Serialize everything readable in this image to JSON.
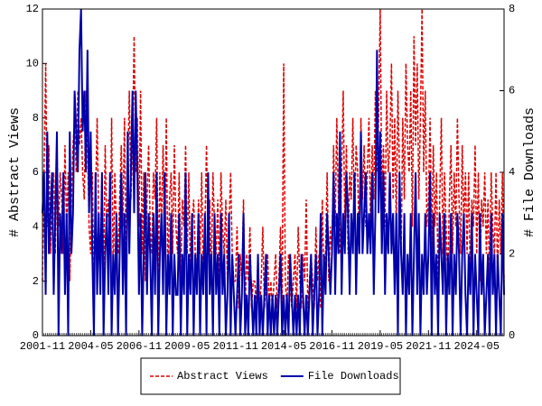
{
  "chart_data": {
    "type": "line",
    "x": [
      "2001-11",
      "2001-12",
      "2002-01",
      "2002-02",
      "2002-03",
      "2002-04",
      "2002-05",
      "2002-06",
      "2002-07",
      "2002-08",
      "2002-09",
      "2002-10",
      "2002-11",
      "2002-12",
      "2003-01",
      "2003-02",
      "2003-03",
      "2003-04",
      "2003-05",
      "2003-06",
      "2003-07",
      "2003-08",
      "2003-09",
      "2003-10",
      "2003-11",
      "2003-12",
      "2004-01",
      "2004-02",
      "2004-03",
      "2004-04",
      "2004-05",
      "2004-06",
      "2004-07",
      "2004-08",
      "2004-09",
      "2004-10",
      "2004-11",
      "2004-12",
      "2005-01",
      "2005-02",
      "2005-03",
      "2005-04",
      "2005-05",
      "2005-06",
      "2005-07",
      "2005-08",
      "2005-09",
      "2005-10",
      "2005-11",
      "2005-12",
      "2006-01",
      "2006-02",
      "2006-03",
      "2006-04",
      "2006-05",
      "2006-06",
      "2006-07",
      "2006-08",
      "2006-09",
      "2006-10",
      "2006-11",
      "2006-12",
      "2007-01",
      "2007-02",
      "2007-03",
      "2007-04",
      "2007-05",
      "2007-06",
      "2007-07",
      "2007-08",
      "2007-09",
      "2007-10",
      "2007-11",
      "2007-12",
      "2008-01",
      "2008-02",
      "2008-03",
      "2008-04",
      "2008-05",
      "2008-06",
      "2008-07",
      "2008-08",
      "2008-09",
      "2008-10",
      "2008-11",
      "2008-12",
      "2009-01",
      "2009-02",
      "2009-03",
      "2009-04",
      "2009-05",
      "2009-06",
      "2009-07",
      "2009-08",
      "2009-09",
      "2009-10",
      "2009-11",
      "2009-12",
      "2010-01",
      "2010-02",
      "2010-03",
      "2010-04",
      "2010-05",
      "2010-06",
      "2010-07",
      "2010-08",
      "2010-09",
      "2010-10",
      "2010-11",
      "2010-12",
      "2011-01",
      "2011-02",
      "2011-03",
      "2011-04",
      "2011-05",
      "2011-06",
      "2011-07",
      "2011-08",
      "2011-09",
      "2011-10",
      "2011-11",
      "2011-12",
      "2012-01",
      "2012-02",
      "2012-03",
      "2012-04",
      "2012-05",
      "2012-06",
      "2012-07",
      "2012-08",
      "2012-09",
      "2012-10",
      "2012-11",
      "2012-12",
      "2013-01",
      "2013-02",
      "2013-03",
      "2013-04",
      "2013-05",
      "2013-06",
      "2013-07",
      "2013-08",
      "2013-09",
      "2013-10",
      "2013-11",
      "2013-12",
      "2014-01",
      "2014-02",
      "2014-03",
      "2014-04",
      "2014-05",
      "2014-06",
      "2014-07",
      "2014-08",
      "2014-09",
      "2014-10",
      "2014-11",
      "2014-12",
      "2015-01",
      "2015-02",
      "2015-03",
      "2015-04",
      "2015-05",
      "2015-06",
      "2015-07",
      "2015-08",
      "2015-09",
      "2015-10",
      "2015-11",
      "2015-12",
      "2016-01",
      "2016-02",
      "2016-03",
      "2016-04",
      "2016-05",
      "2016-06",
      "2016-07",
      "2016-08",
      "2016-09",
      "2016-10",
      "2016-11",
      "2016-12",
      "2017-01",
      "2017-02",
      "2017-03",
      "2017-04",
      "2017-05",
      "2017-06",
      "2017-07",
      "2017-08",
      "2017-09",
      "2017-10",
      "2017-11",
      "2017-12",
      "2018-01",
      "2018-02",
      "2018-03",
      "2018-04",
      "2018-05",
      "2018-06",
      "2018-07",
      "2018-08",
      "2018-09",
      "2018-10",
      "2018-11",
      "2018-12",
      "2019-01",
      "2019-02",
      "2019-03",
      "2019-04",
      "2019-05",
      "2019-06",
      "2019-07",
      "2019-08",
      "2019-09",
      "2019-10",
      "2019-11",
      "2019-12",
      "2020-01",
      "2020-02",
      "2020-03",
      "2020-04",
      "2020-05",
      "2020-06",
      "2020-07",
      "2020-08",
      "2020-09",
      "2020-10",
      "2020-11",
      "2020-12",
      "2021-01",
      "2021-02",
      "2021-03",
      "2021-04",
      "2021-05",
      "2021-06",
      "2021-07",
      "2021-08",
      "2021-09",
      "2021-10",
      "2021-11",
      "2021-12",
      "2022-01",
      "2022-02",
      "2022-03",
      "2022-04",
      "2022-05",
      "2022-06",
      "2022-07",
      "2022-08",
      "2022-09",
      "2022-10",
      "2022-11",
      "2022-12",
      "2023-01",
      "2023-02",
      "2023-03",
      "2023-04",
      "2023-05",
      "2023-06",
      "2023-07",
      "2023-08",
      "2023-09",
      "2023-10",
      "2023-11",
      "2023-12",
      "2024-01",
      "2024-02",
      "2024-03",
      "2024-04",
      "2024-05",
      "2024-06",
      "2024-07",
      "2024-08",
      "2024-09",
      "2024-10",
      "2024-11",
      "2024-12",
      "2025-01",
      "2025-02",
      "2025-03",
      "2025-04",
      "2025-05",
      "2025-06",
      "2025-07",
      "2025-08",
      "2025-09",
      "2025-10"
    ],
    "series": [
      {
        "name": "Abstract Views",
        "color": "#dd0000",
        "dash": true,
        "axis": "y",
        "values": [
          2,
          6,
          10,
          4,
          7,
          3,
          5,
          6,
          3,
          7,
          4,
          6,
          5,
          3,
          7,
          4,
          6,
          2,
          5,
          7,
          8,
          6,
          9,
          7,
          8,
          6,
          5,
          9,
          7,
          4,
          3,
          6,
          2,
          5,
          8,
          4,
          3,
          6,
          2,
          7,
          4,
          5,
          3,
          8,
          2,
          6,
          4,
          3,
          5,
          7,
          4,
          8,
          3,
          6,
          9,
          5,
          7,
          11,
          6,
          8,
          4,
          9,
          3,
          6,
          2,
          5,
          7,
          4,
          3,
          6,
          5,
          8,
          2,
          6,
          4,
          7,
          3,
          8,
          2,
          5,
          6,
          3,
          7,
          4,
          3,
          6,
          2,
          5,
          4,
          7,
          3,
          6,
          2,
          4,
          5,
          3,
          2,
          5,
          3,
          6,
          2,
          4,
          7,
          3,
          5,
          2,
          6,
          4,
          3,
          5,
          2,
          6,
          4,
          3,
          5,
          2,
          4,
          6,
          3,
          2,
          2,
          4,
          1,
          3,
          2,
          5,
          1,
          3,
          2,
          4,
          1,
          2,
          2,
          1,
          3,
          1,
          2,
          4,
          1,
          2,
          3,
          1,
          2,
          1,
          2,
          3,
          1,
          2,
          4,
          1,
          10,
          2,
          1,
          3,
          2,
          1,
          2,
          3,
          1,
          4,
          2,
          1,
          3,
          2,
          5,
          1,
          2,
          3,
          2,
          1,
          4,
          2,
          3,
          1,
          5,
          2,
          3,
          6,
          2,
          4,
          3,
          7,
          4,
          8,
          5,
          3,
          6,
          9,
          4,
          7,
          3,
          6,
          5,
          8,
          4,
          7,
          6,
          3,
          8,
          5,
          7,
          4,
          6,
          8,
          4,
          7,
          5,
          9,
          6,
          8,
          12,
          5,
          7,
          4,
          9,
          6,
          7,
          10,
          5,
          8,
          4,
          9,
          6,
          3,
          8,
          5,
          10,
          7,
          6,
          9,
          4,
          11,
          7,
          10,
          5,
          8,
          12,
          6,
          9,
          4,
          5,
          8,
          3,
          7,
          4,
          6,
          2,
          5,
          8,
          3,
          6,
          4,
          2,
          5,
          7,
          3,
          6,
          4,
          8,
          5,
          3,
          7,
          4,
          6,
          3,
          6,
          2,
          5,
          4,
          7,
          3,
          6,
          2,
          5,
          4,
          6,
          3,
          5,
          2,
          6,
          4,
          3,
          6,
          2,
          5,
          3,
          6,
          2
        ]
      },
      {
        "name": "File Downloads",
        "color": "#0000aa",
        "dash": false,
        "axis": "y2",
        "values": [
          3,
          4,
          1,
          5,
          2,
          3,
          4,
          1,
          3,
          5,
          0,
          3,
          2,
          4,
          1,
          3,
          0,
          5,
          2,
          3,
          6,
          5,
          4,
          7,
          8,
          5,
          6,
          4,
          7,
          3,
          5,
          2,
          0,
          4,
          1,
          3,
          1,
          4,
          0,
          2,
          3,
          1,
          4,
          0,
          2,
          1,
          3,
          0,
          2,
          4,
          1,
          3,
          0,
          5,
          2,
          4,
          6,
          3,
          6,
          4,
          1,
          3,
          0,
          2,
          4,
          1,
          3,
          2,
          0,
          3,
          1,
          4,
          0,
          2,
          3,
          1,
          4,
          0,
          2,
          1,
          3,
          0,
          2,
          1,
          1,
          3,
          0,
          2,
          1,
          4,
          0,
          2,
          1,
          3,
          0,
          2,
          1,
          3,
          0,
          2,
          1,
          3,
          0,
          4,
          1,
          2,
          0,
          3,
          1,
          2,
          0,
          3,
          1,
          2,
          0,
          1,
          3,
          0,
          2,
          1,
          0,
          1,
          2,
          0,
          1,
          3,
          0,
          1,
          0,
          2,
          1,
          0,
          1,
          0,
          2,
          0,
          1,
          0,
          1,
          2,
          0,
          1,
          0,
          1,
          0,
          1,
          0,
          1,
          2,
          0,
          1,
          0,
          1,
          0,
          2,
          1,
          0,
          1,
          0,
          1,
          0,
          2,
          1,
          0,
          1,
          0,
          1,
          2,
          0,
          1,
          2,
          0,
          1,
          3,
          0,
          2,
          1,
          3,
          2,
          1,
          2,
          4,
          1,
          3,
          2,
          5,
          1,
          3,
          2,
          4,
          3,
          1,
          3,
          2,
          4,
          1,
          3,
          2,
          5,
          2,
          3,
          4,
          2,
          3,
          2,
          4,
          1,
          3,
          7,
          3,
          5,
          2,
          4,
          1,
          3,
          2,
          4,
          2,
          3,
          1,
          3,
          0,
          4,
          2,
          1,
          3,
          0,
          2,
          1,
          3,
          0,
          2,
          4,
          1,
          3,
          0,
          2,
          1,
          3,
          1,
          2,
          4,
          0,
          3,
          1,
          2,
          0,
          3,
          2,
          1,
          3,
          0,
          2,
          1,
          3,
          0,
          2,
          1,
          3,
          2,
          0,
          2,
          3,
          1,
          0,
          2,
          1,
          3,
          0,
          2,
          1,
          0,
          3,
          1,
          2,
          0,
          1,
          2,
          0,
          3,
          1,
          2,
          0,
          2,
          1,
          0,
          3,
          1
        ]
      }
    ],
    "xlim": [
      "2001-11",
      "2025-10"
    ],
    "xticks": [
      "2001-11",
      "2004-05",
      "2006-11",
      "2009-05",
      "2011-11",
      "2014-05",
      "2016-11",
      "2019-05",
      "2021-11",
      "2024-05"
    ],
    "ylim": [
      0,
      12
    ],
    "yticks": [
      0,
      2,
      4,
      6,
      8,
      10,
      12
    ],
    "y2lim": [
      0,
      8
    ],
    "y2ticks": [
      0,
      2,
      4,
      6,
      8
    ],
    "ylabel": "# Abstract Views",
    "y2label": "# File Downloads",
    "legend": "bottom"
  }
}
